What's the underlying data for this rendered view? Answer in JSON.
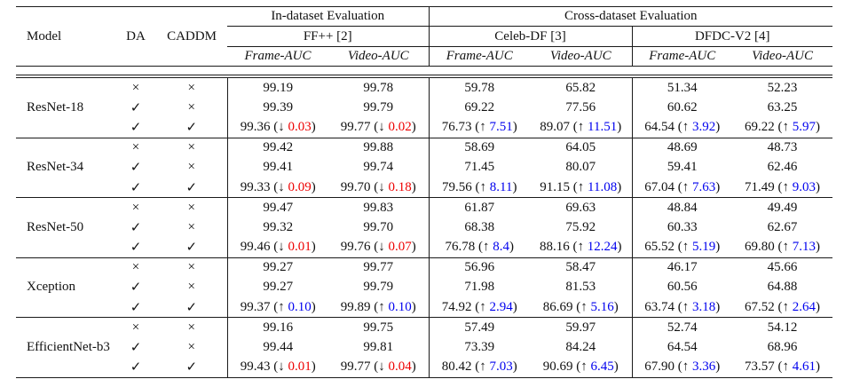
{
  "header": {
    "model": "Model",
    "da": "DA",
    "caddm": "CADDM",
    "in_dataset_group": "In-dataset Evaluation",
    "cross_dataset_group": "Cross-dataset Evaluation",
    "datasets": [
      "FF++ [2]",
      "Celeb-DF [3]",
      "DFDC-V2 [4]"
    ],
    "frame_auc": "Frame-AUC",
    "video_auc": "Video-AUC"
  },
  "symbols": {
    "check": "✓",
    "cross": "×",
    "up": "↑",
    "down": "↓"
  },
  "colors": {
    "increase": "#0000ee",
    "decrease": "#ee0000",
    "rule": "#1a1a1a"
  },
  "blocks": [
    {
      "model": "ResNet-18",
      "rows": [
        {
          "da": "cross",
          "caddm": "cross",
          "values": [
            "99.19",
            "99.78",
            "59.78",
            "65.82",
            "51.34",
            "52.23"
          ]
        },
        {
          "da": "check",
          "caddm": "cross",
          "values": [
            "99.39",
            "99.79",
            "69.22",
            "77.56",
            "60.62",
            "63.25"
          ]
        },
        {
          "da": "check",
          "caddm": "check",
          "values": [
            {
              "v": "99.36",
              "dir": "down",
              "delta": "0.03"
            },
            {
              "v": "99.77",
              "dir": "down",
              "delta": "0.02"
            },
            {
              "v": "76.73",
              "dir": "up",
              "delta": "7.51"
            },
            {
              "v": "89.07",
              "dir": "up",
              "delta": "11.51"
            },
            {
              "v": "64.54",
              "dir": "up",
              "delta": "3.92"
            },
            {
              "v": "69.22",
              "dir": "up",
              "delta": "5.97"
            }
          ]
        }
      ]
    },
    {
      "model": "ResNet-34",
      "rows": [
        {
          "da": "cross",
          "caddm": "cross",
          "values": [
            "99.42",
            "99.88",
            "58.69",
            "64.05",
            "48.69",
            "48.73"
          ]
        },
        {
          "da": "check",
          "caddm": "cross",
          "values": [
            "99.41",
            "99.74",
            "71.45",
            "80.07",
            "59.41",
            "62.46"
          ]
        },
        {
          "da": "check",
          "caddm": "check",
          "values": [
            {
              "v": "99.33",
              "dir": "down",
              "delta": "0.09"
            },
            {
              "v": "99.70",
              "dir": "down",
              "delta": "0.18"
            },
            {
              "v": "79.56",
              "dir": "up",
              "delta": "8.11"
            },
            {
              "v": "91.15",
              "dir": "up",
              "delta": "11.08"
            },
            {
              "v": "67.04",
              "dir": "up",
              "delta": "7.63"
            },
            {
              "v": "71.49",
              "dir": "up",
              "delta": "9.03"
            }
          ]
        }
      ]
    },
    {
      "model": "ResNet-50",
      "rows": [
        {
          "da": "cross",
          "caddm": "cross",
          "values": [
            "99.47",
            "99.83",
            "61.87",
            "69.63",
            "48.84",
            "49.49"
          ]
        },
        {
          "da": "check",
          "caddm": "cross",
          "values": [
            "99.32",
            "99.70",
            "68.38",
            "75.92",
            "60.33",
            "62.67"
          ]
        },
        {
          "da": "check",
          "caddm": "check",
          "values": [
            {
              "v": "99.46",
              "dir": "down",
              "delta": "0.01"
            },
            {
              "v": "99.76",
              "dir": "down",
              "delta": "0.07"
            },
            {
              "v": "76.78",
              "dir": "up",
              "delta": "8.4"
            },
            {
              "v": "88.16",
              "dir": "up",
              "delta": "12.24"
            },
            {
              "v": "65.52",
              "dir": "up",
              "delta": "5.19"
            },
            {
              "v": "69.80",
              "dir": "up",
              "delta": "7.13"
            }
          ]
        }
      ]
    },
    {
      "model": "Xception",
      "rows": [
        {
          "da": "cross",
          "caddm": "cross",
          "values": [
            "99.27",
            "99.77",
            "56.96",
            "58.47",
            "46.17",
            "45.66"
          ]
        },
        {
          "da": "check",
          "caddm": "cross",
          "values": [
            "99.27",
            "99.79",
            "71.98",
            "81.53",
            "60.56",
            "64.88"
          ]
        },
        {
          "da": "check",
          "caddm": "check",
          "values": [
            {
              "v": "99.37",
              "dir": "up",
              "delta": "0.10"
            },
            {
              "v": "99.89",
              "dir": "up",
              "delta": "0.10"
            },
            {
              "v": "74.92",
              "dir": "up",
              "delta": "2.94"
            },
            {
              "v": "86.69",
              "dir": "up",
              "delta": "5.16"
            },
            {
              "v": "63.74",
              "dir": "up",
              "delta": "3.18"
            },
            {
              "v": "67.52",
              "dir": "up",
              "delta": "2.64"
            }
          ]
        }
      ]
    },
    {
      "model": "EfficientNet-b3",
      "rows": [
        {
          "da": "cross",
          "caddm": "cross",
          "values": [
            "99.16",
            "99.75",
            "57.49",
            "59.97",
            "52.74",
            "54.12"
          ]
        },
        {
          "da": "check",
          "caddm": "cross",
          "values": [
            "99.44",
            "99.81",
            "73.39",
            "84.24",
            "64.54",
            "68.96"
          ]
        },
        {
          "da": "check",
          "caddm": "check",
          "values": [
            {
              "v": "99.43",
              "dir": "down",
              "delta": "0.01"
            },
            {
              "v": "99.77",
              "dir": "down",
              "delta": "0.04"
            },
            {
              "v": "80.42",
              "dir": "up",
              "delta": "7.03"
            },
            {
              "v": "90.69",
              "dir": "up",
              "delta": "6.45"
            },
            {
              "v": "67.90",
              "dir": "up",
              "delta": "3.36"
            },
            {
              "v": "73.57",
              "dir": "up",
              "delta": "4.61"
            }
          ]
        }
      ]
    }
  ]
}
